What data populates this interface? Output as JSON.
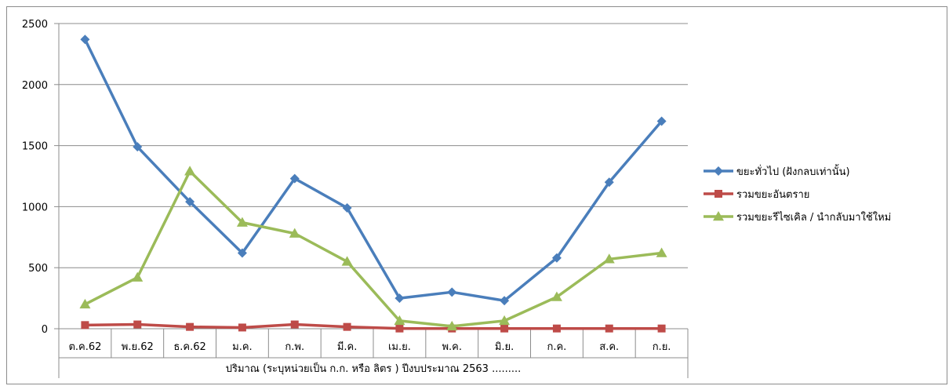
{
  "chart_data": {
    "type": "line",
    "categories": [
      "ต.ค.62",
      "พ.ย.62",
      "ธ.ค.62",
      "ม.ค.",
      "ก.พ.",
      "มี.ค.",
      "เม.ย.",
      "พ.ค.",
      "มิ.ย.",
      "ก.ค.",
      "ส.ค.",
      "ก.ย."
    ],
    "xlabel": "ปริมาณ (ระบุหน่วยเป็น ก.ก. หรือ ลิตร ) ปีงบประมาณ 2563 .........",
    "ylabel": "",
    "ylim": [
      0,
      2500
    ],
    "yticks": [
      0,
      500,
      1000,
      1500,
      2000,
      2500
    ],
    "grid": true,
    "legend_position": "right",
    "series": [
      {
        "name": "ขยะทั่วไป (ฝังกลบเท่านั้น)",
        "color": "#4a7ebb",
        "marker": "diamond",
        "values": [
          2370,
          1490,
          1040,
          620,
          1230,
          990,
          250,
          300,
          230,
          580,
          1200,
          1700
        ]
      },
      {
        "name": "รวมขยะอันตราย",
        "color": "#be4b48",
        "marker": "square",
        "values": [
          30,
          35,
          15,
          10,
          35,
          15,
          2,
          2,
          2,
          2,
          2,
          2
        ]
      },
      {
        "name": "รวมขยะรีไซเคิล / นำกลับมาใช้ใหม่",
        "color": "#9bbb59",
        "marker": "triangle",
        "values": [
          200,
          420,
          1290,
          870,
          780,
          550,
          65,
          20,
          65,
          260,
          570,
          620
        ]
      }
    ]
  }
}
